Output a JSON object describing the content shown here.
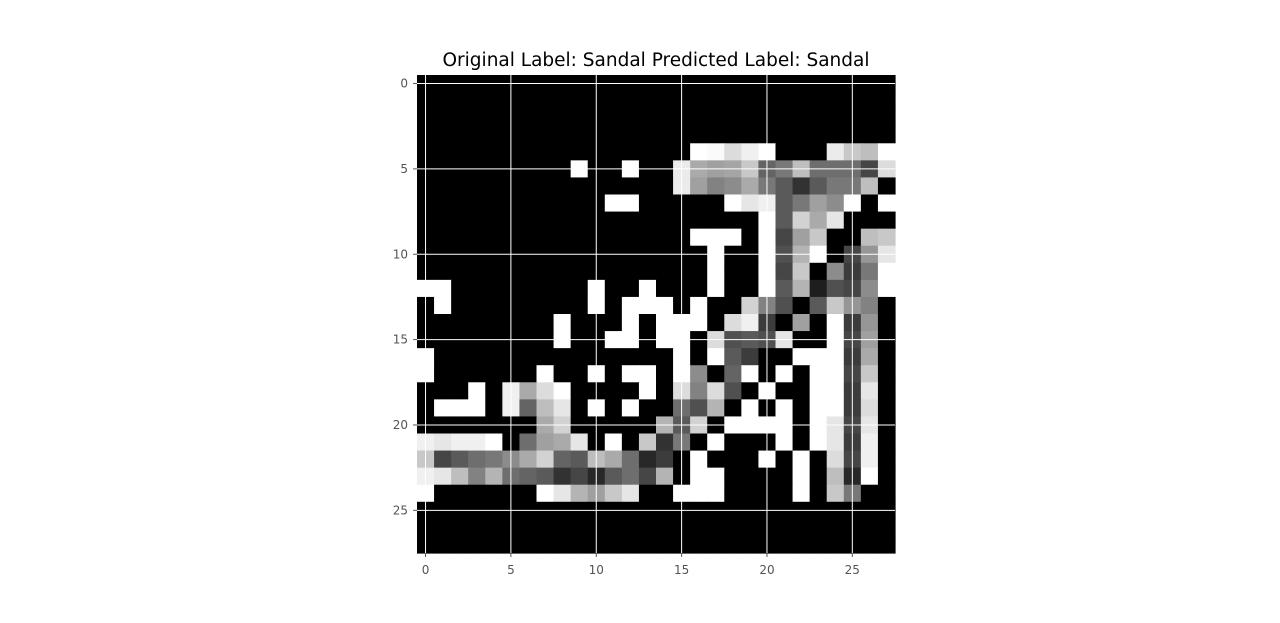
{
  "chart_data": {
    "type": "heatmap",
    "title": "Original Label: Sandal  Predicted Label: Sandal",
    "xlabel": "",
    "ylabel": "",
    "colormap": "gray",
    "grid": true,
    "grid_color": "#ffffff",
    "value_range": [
      0,
      255
    ],
    "xlim": [
      -0.5,
      27.5
    ],
    "ylim": [
      27.5,
      -0.5
    ],
    "x_ticks": [
      0,
      5,
      10,
      15,
      20,
      25
    ],
    "y_ticks": [
      0,
      5,
      10,
      15,
      20,
      25
    ],
    "rows": 28,
    "cols": 28,
    "values": [
      [
        0,
        0,
        0,
        0,
        0,
        0,
        0,
        0,
        0,
        0,
        0,
        0,
        0,
        0,
        0,
        0,
        0,
        0,
        0,
        0,
        0,
        0,
        0,
        0,
        0,
        0,
        0,
        0
      ],
      [
        0,
        0,
        0,
        0,
        0,
        0,
        0,
        0,
        0,
        0,
        0,
        0,
        0,
        0,
        0,
        0,
        0,
        0,
        0,
        0,
        0,
        0,
        0,
        0,
        0,
        0,
        0,
        0
      ],
      [
        0,
        0,
        0,
        0,
        0,
        0,
        0,
        0,
        0,
        0,
        0,
        0,
        0,
        0,
        0,
        0,
        0,
        0,
        0,
        0,
        0,
        0,
        0,
        0,
        0,
        0,
        0,
        0
      ],
      [
        0,
        0,
        0,
        0,
        0,
        0,
        0,
        0,
        0,
        0,
        0,
        0,
        0,
        0,
        0,
        0,
        0,
        0,
        0,
        0,
        0,
        0,
        0,
        0,
        0,
        0,
        0,
        0
      ],
      [
        0,
        0,
        0,
        0,
        0,
        0,
        0,
        0,
        0,
        0,
        0,
        0,
        0,
        0,
        0,
        0,
        255,
        250,
        220,
        240,
        255,
        0,
        0,
        0,
        235,
        200,
        190,
        255
      ],
      [
        0,
        0,
        0,
        0,
        0,
        0,
        0,
        0,
        0,
        255,
        0,
        0,
        255,
        0,
        0,
        235,
        170,
        160,
        165,
        200,
        100,
        120,
        190,
        110,
        110,
        110,
        70,
        220
      ],
      [
        0,
        0,
        0,
        0,
        0,
        0,
        0,
        0,
        0,
        0,
        0,
        0,
        0,
        0,
        0,
        235,
        160,
        130,
        140,
        170,
        120,
        90,
        50,
        90,
        120,
        120,
        190,
        0
      ],
      [
        0,
        0,
        0,
        0,
        0,
        0,
        0,
        0,
        0,
        0,
        0,
        255,
        255,
        0,
        0,
        0,
        0,
        0,
        255,
        230,
        240,
        90,
        120,
        160,
        140,
        255,
        0,
        255
      ],
      [
        0,
        0,
        0,
        0,
        0,
        0,
        0,
        0,
        0,
        0,
        0,
        0,
        0,
        0,
        0,
        0,
        0,
        0,
        0,
        0,
        255,
        90,
        210,
        170,
        230,
        0,
        0,
        0
      ],
      [
        0,
        0,
        0,
        0,
        0,
        0,
        0,
        0,
        0,
        0,
        0,
        0,
        0,
        0,
        0,
        0,
        255,
        255,
        255,
        0,
        255,
        70,
        160,
        200,
        0,
        0,
        190,
        200
      ],
      [
        0,
        0,
        0,
        0,
        0,
        0,
        0,
        0,
        0,
        0,
        0,
        0,
        0,
        0,
        0,
        0,
        0,
        255,
        0,
        0,
        255,
        80,
        180,
        255,
        0,
        70,
        150,
        230
      ],
      [
        0,
        0,
        0,
        0,
        0,
        0,
        0,
        0,
        0,
        0,
        0,
        0,
        0,
        0,
        0,
        0,
        0,
        255,
        0,
        0,
        255,
        70,
        200,
        0,
        140,
        60,
        120,
        255
      ],
      [
        255,
        255,
        0,
        0,
        0,
        0,
        0,
        0,
        0,
        0,
        255,
        0,
        0,
        255,
        0,
        0,
        0,
        255,
        0,
        0,
        255,
        90,
        180,
        30,
        80,
        70,
        140,
        255
      ],
      [
        0,
        255,
        0,
        0,
        0,
        0,
        0,
        0,
        0,
        0,
        255,
        0,
        255,
        255,
        255,
        0,
        255,
        0,
        0,
        210,
        130,
        80,
        0,
        90,
        200,
        150,
        130,
        0
      ],
      [
        0,
        0,
        0,
        0,
        0,
        0,
        0,
        0,
        255,
        0,
        0,
        0,
        255,
        0,
        255,
        255,
        255,
        0,
        220,
        240,
        60,
        0,
        160,
        0,
        255,
        60,
        150,
        0
      ],
      [
        0,
        0,
        0,
        0,
        0,
        0,
        0,
        0,
        255,
        0,
        0,
        255,
        255,
        0,
        255,
        255,
        0,
        220,
        80,
        90,
        80,
        230,
        0,
        0,
        255,
        70,
        160,
        0
      ],
      [
        255,
        0,
        0,
        0,
        0,
        0,
        0,
        0,
        0,
        0,
        0,
        0,
        0,
        0,
        0,
        255,
        0,
        255,
        90,
        60,
        0,
        0,
        255,
        255,
        255,
        60,
        170,
        0
      ],
      [
        255,
        0,
        0,
        0,
        0,
        0,
        0,
        255,
        0,
        0,
        255,
        0,
        255,
        255,
        0,
        255,
        140,
        0,
        100,
        255,
        0,
        255,
        0,
        255,
        255,
        70,
        200,
        0
      ],
      [
        0,
        0,
        0,
        255,
        0,
        240,
        170,
        220,
        255,
        0,
        0,
        0,
        0,
        255,
        0,
        220,
        130,
        220,
        80,
        0,
        255,
        0,
        0,
        255,
        255,
        60,
        230,
        0
      ],
      [
        0,
        255,
        255,
        255,
        0,
        240,
        100,
        190,
        230,
        0,
        255,
        0,
        255,
        0,
        0,
        110,
        80,
        180,
        0,
        255,
        0,
        255,
        0,
        255,
        255,
        60,
        220,
        0
      ],
      [
        0,
        0,
        0,
        0,
        0,
        0,
        0,
        170,
        210,
        0,
        0,
        0,
        0,
        0,
        180,
        90,
        210,
        0,
        255,
        255,
        255,
        255,
        0,
        255,
        230,
        70,
        230,
        0
      ],
      [
        240,
        230,
        240,
        240,
        255,
        0,
        110,
        160,
        170,
        230,
        0,
        255,
        0,
        200,
        50,
        120,
        0,
        255,
        0,
        0,
        0,
        255,
        0,
        255,
        230,
        60,
        240,
        0
      ],
      [
        200,
        70,
        90,
        110,
        120,
        140,
        170,
        210,
        100,
        90,
        190,
        170,
        110,
        40,
        60,
        0,
        255,
        0,
        0,
        0,
        255,
        0,
        255,
        0,
        220,
        70,
        240,
        0
      ],
      [
        240,
        230,
        190,
        130,
        180,
        110,
        100,
        90,
        50,
        70,
        40,
        90,
        110,
        70,
        180,
        0,
        255,
        255,
        0,
        0,
        0,
        0,
        255,
        0,
        190,
        40,
        255,
        0
      ],
      [
        255,
        0,
        0,
        0,
        0,
        0,
        0,
        255,
        230,
        180,
        160,
        200,
        230,
        0,
        0,
        255,
        255,
        255,
        0,
        0,
        0,
        0,
        255,
        0,
        200,
        120,
        0,
        0
      ],
      [
        0,
        0,
        0,
        0,
        0,
        0,
        0,
        0,
        0,
        0,
        0,
        0,
        0,
        0,
        0,
        0,
        0,
        0,
        0,
        0,
        0,
        0,
        0,
        0,
        0,
        0,
        0,
        0
      ],
      [
        0,
        0,
        0,
        0,
        0,
        0,
        0,
        0,
        0,
        0,
        0,
        0,
        0,
        0,
        0,
        0,
        0,
        0,
        0,
        0,
        0,
        0,
        0,
        0,
        0,
        0,
        0,
        0
      ],
      [
        0,
        0,
        0,
        0,
        0,
        0,
        0,
        0,
        0,
        0,
        0,
        0,
        0,
        0,
        0,
        0,
        0,
        0,
        0,
        0,
        0,
        0,
        0,
        0,
        0,
        0,
        0,
        0
      ]
    ]
  }
}
